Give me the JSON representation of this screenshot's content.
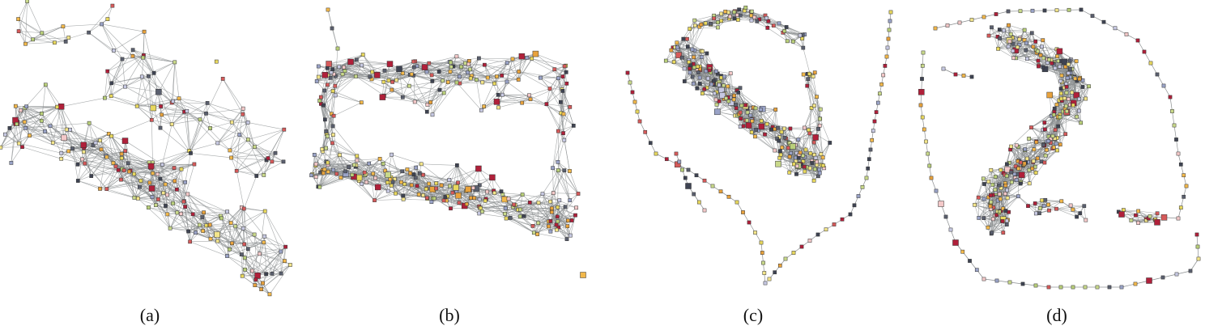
{
  "figure": {
    "panels": [
      {
        "id": "a",
        "caption": "(a)",
        "shape": "diagonal-band"
      },
      {
        "id": "b",
        "caption": "(b)",
        "shape": "ring-rectangle"
      },
      {
        "id": "c",
        "caption": "(c)",
        "shape": "spiral-band"
      },
      {
        "id": "d",
        "caption": "(d)",
        "shape": "s-curve-with-loop"
      }
    ],
    "node_palette": [
      "#f3e58a",
      "#e8d85e",
      "#c9d98a",
      "#b9cf7a",
      "#5a5f6e",
      "#3e4352",
      "#f2b84b",
      "#e8a23c",
      "#9aa3c7",
      "#c7c9e2",
      "#b0203a",
      "#d65a5a",
      "#f3c8c8"
    ],
    "edge_color": "#8a8d8f"
  }
}
